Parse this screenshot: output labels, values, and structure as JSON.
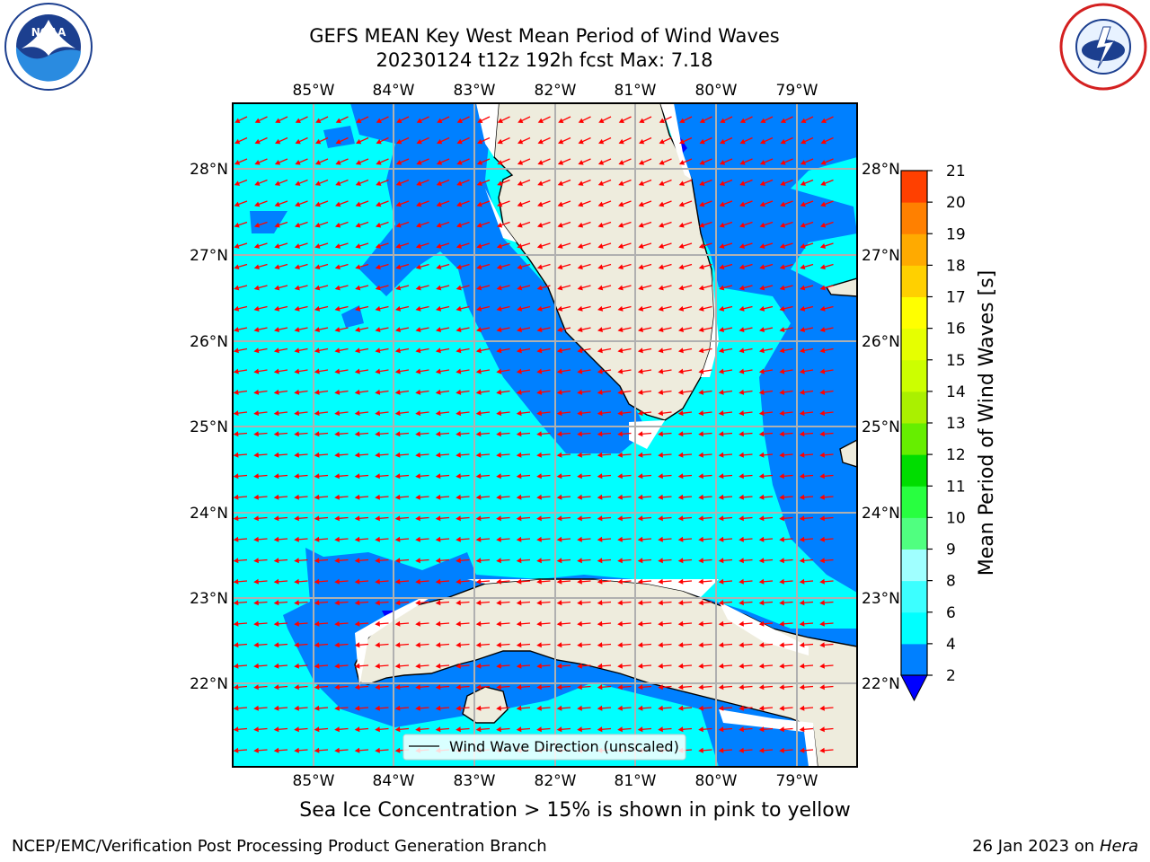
{
  "header": {
    "title_line1": "GEFS MEAN Key West Mean Period of Wind Waves",
    "title_line2": "20230124 t12z 192h fcst   Max: 7.18"
  },
  "logos": {
    "left": "noaa-logo",
    "right": "nws-logo",
    "left_text": "NOAA",
    "right_text": "NATIONAL WEATHER SERVICE"
  },
  "map": {
    "lon_ticks": [
      "85°W",
      "84°W",
      "83°W",
      "82°W",
      "81°W",
      "80°W",
      "79°W"
    ],
    "lat_ticks": [
      "28°N",
      "27°N",
      "26°N",
      "25°N",
      "24°N",
      "23°N",
      "22°N"
    ],
    "legend_label": "Wind Wave Direction (unscaled)",
    "wind_direction_summary": "arrows point west to west-northwest across the domain",
    "colors": {
      "ocean_short": "#00ffff",
      "ocean_mid": "#0080ff",
      "ocean_deep": "#0000ff",
      "land": "#eeecdd",
      "arrow": "#ff0000",
      "grid": "#b0b0b0"
    }
  },
  "colorbar": {
    "label": "Mean Period of Wind Waves [s]",
    "tick_labels": [
      "2",
      "4",
      "6",
      "8",
      "9",
      "10",
      "11",
      "12",
      "13",
      "14",
      "15",
      "16",
      "17",
      "18",
      "19",
      "20",
      "21"
    ],
    "levels": [
      2,
      4,
      6,
      8,
      9,
      10,
      11,
      12,
      13,
      14,
      15,
      16,
      17,
      18,
      19,
      20,
      21
    ],
    "colors": [
      "#0080ff",
      "#00ffff",
      "#3cffff",
      "#a0ffff",
      "#50ff80",
      "#28ff40",
      "#00dd00",
      "#66ee00",
      "#aaf000",
      "#ccff00",
      "#e6ff00",
      "#ffff00",
      "#ffd000",
      "#ffaa00",
      "#ff8000",
      "#ff4000",
      "#ff0000"
    ],
    "extend_color": "#0000ff"
  },
  "notes": {
    "sea_ice": "Sea Ice Concentration > 15% is shown in pink to yellow"
  },
  "footer": {
    "left": "NCEP/EMC/Verification Post Processing Product Generation Branch",
    "date": "26 Jan 2023 on ",
    "machine": "Hera"
  }
}
